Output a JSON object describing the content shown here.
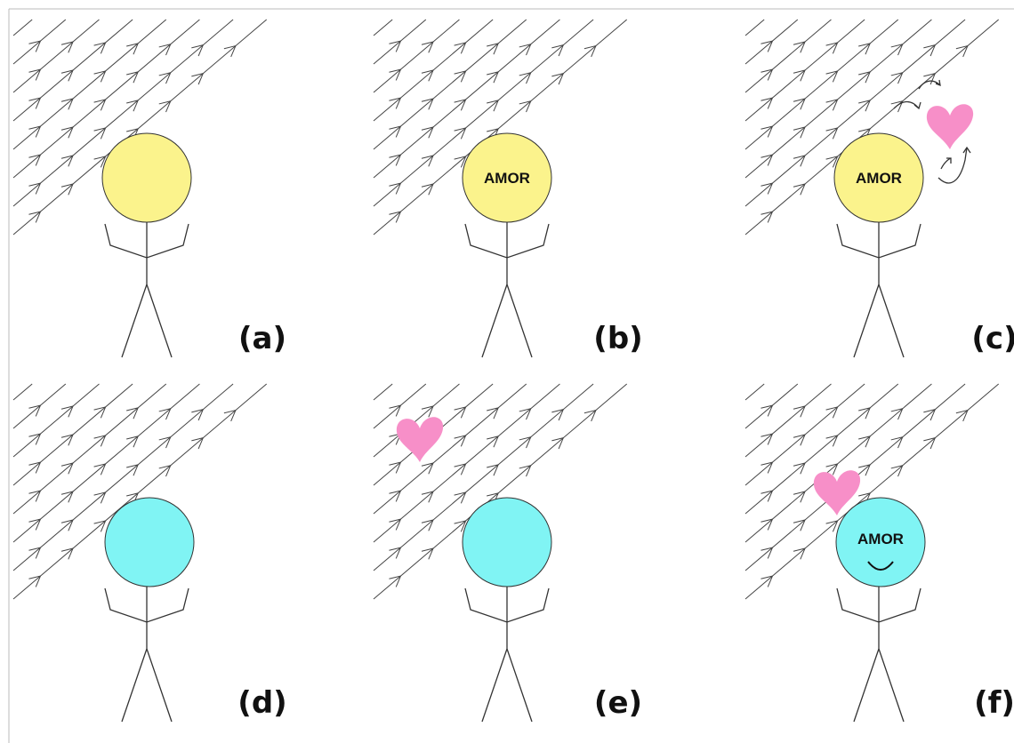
{
  "panels": [
    {
      "label": "(a)"
    },
    {
      "label": "(b)",
      "head": "AMOR"
    },
    {
      "label": "(c)",
      "head": "AMOR"
    },
    {
      "label": "(d)"
    },
    {
      "label": "(e)"
    },
    {
      "label": "(f)",
      "head": "AMOR"
    }
  ]
}
